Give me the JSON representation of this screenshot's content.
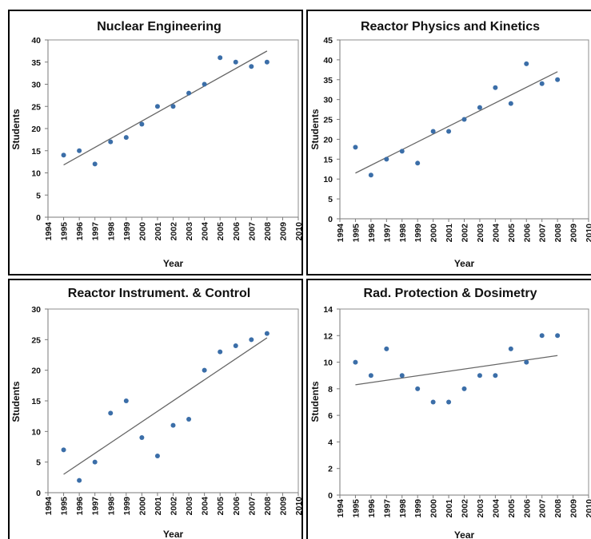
{
  "chart_data": [
    {
      "type": "scatter",
      "title": "Nuclear Engineering",
      "xlabel": "Year",
      "ylabel": "Students",
      "xlim": [
        1994,
        2010
      ],
      "ylim": [
        0,
        40
      ],
      "yticks": [
        0,
        5,
        10,
        15,
        20,
        25,
        30,
        35,
        40
      ],
      "xticks": [
        1994,
        1995,
        1996,
        1997,
        1998,
        1999,
        2000,
        2001,
        2002,
        2003,
        2004,
        2005,
        2006,
        2007,
        2008,
        2009,
        2010
      ],
      "x": [
        1995,
        1996,
        1997,
        1998,
        1999,
        2000,
        2001,
        2002,
        2003,
        2004,
        2005,
        2006,
        2007,
        2008
      ],
      "y": [
        14,
        15,
        12,
        17,
        18,
        21,
        25,
        25,
        28,
        30,
        36,
        35,
        34,
        35
      ],
      "trendline": {
        "x": [
          1995,
          2008
        ],
        "y": [
          11.8,
          37.5
        ]
      },
      "marker_color": "#3b6ea8",
      "trend_color": "#666666",
      "grid": false
    },
    {
      "type": "scatter",
      "title": "Reactor Physics and Kinetics",
      "xlabel": "Year",
      "ylabel": "Students",
      "xlim": [
        1994,
        2010
      ],
      "ylim": [
        0,
        45
      ],
      "yticks": [
        0,
        5,
        10,
        15,
        20,
        25,
        30,
        35,
        40,
        45
      ],
      "xticks": [
        1994,
        1995,
        1996,
        1997,
        1998,
        1999,
        2000,
        2001,
        2002,
        2003,
        2004,
        2005,
        2006,
        2007,
        2008,
        2009,
        2010
      ],
      "x": [
        1995,
        1996,
        1997,
        1998,
        1999,
        2000,
        2001,
        2002,
        2003,
        2004,
        2005,
        2006,
        2007,
        2008
      ],
      "y": [
        18,
        11,
        15,
        17,
        14,
        22,
        22,
        25,
        28,
        33,
        29,
        39,
        34,
        35
      ],
      "trendline": {
        "x": [
          1995,
          2008
        ],
        "y": [
          11.5,
          37
        ]
      },
      "marker_color": "#3b6ea8",
      "trend_color": "#666666",
      "grid": false
    },
    {
      "type": "scatter",
      "title": "Reactor Instrument. &  Control",
      "xlabel": "Year",
      "ylabel": "Students",
      "xlim": [
        1994,
        2010
      ],
      "ylim": [
        0,
        30
      ],
      "yticks": [
        0,
        5,
        10,
        15,
        20,
        25,
        30
      ],
      "xticks": [
        1994,
        1995,
        1996,
        1997,
        1998,
        1999,
        2000,
        2001,
        2002,
        2003,
        2004,
        2005,
        2006,
        2007,
        2008,
        2009,
        2010
      ],
      "x": [
        1995,
        1996,
        1997,
        1998,
        1999,
        2000,
        2001,
        2002,
        2003,
        2004,
        2005,
        2006,
        2007,
        2008
      ],
      "y": [
        7,
        2,
        5,
        13,
        15,
        9,
        6,
        11,
        12,
        20,
        23,
        24,
        25,
        26
      ],
      "trendline": {
        "x": [
          1995,
          2008
        ],
        "y": [
          3,
          25.3
        ]
      },
      "marker_color": "#3b6ea8",
      "trend_color": "#666666",
      "grid": false
    },
    {
      "type": "scatter",
      "title": "Rad. Protection & Dosimetry",
      "xlabel": "Year",
      "ylabel": "Students",
      "xlim": [
        1994,
        2010
      ],
      "ylim": [
        0,
        14
      ],
      "yticks": [
        0,
        2,
        4,
        6,
        8,
        10,
        12,
        14
      ],
      "xticks": [
        1994,
        1995,
        1996,
        1997,
        1998,
        1999,
        2000,
        2001,
        2002,
        2003,
        2004,
        2005,
        2006,
        2007,
        2008,
        2009,
        2010
      ],
      "x": [
        1995,
        1996,
        1997,
        1998,
        1999,
        2000,
        2001,
        2002,
        2003,
        2004,
        2005,
        2006,
        2007,
        2008
      ],
      "y": [
        10,
        9,
        11,
        9,
        8,
        7,
        7,
        8,
        9,
        9,
        11,
        10,
        12,
        12
      ],
      "trendline": {
        "x": [
          1995,
          2008
        ],
        "y": [
          8.3,
          10.5
        ]
      },
      "marker_color": "#3b6ea8",
      "trend_color": "#666666",
      "grid": false
    }
  ]
}
